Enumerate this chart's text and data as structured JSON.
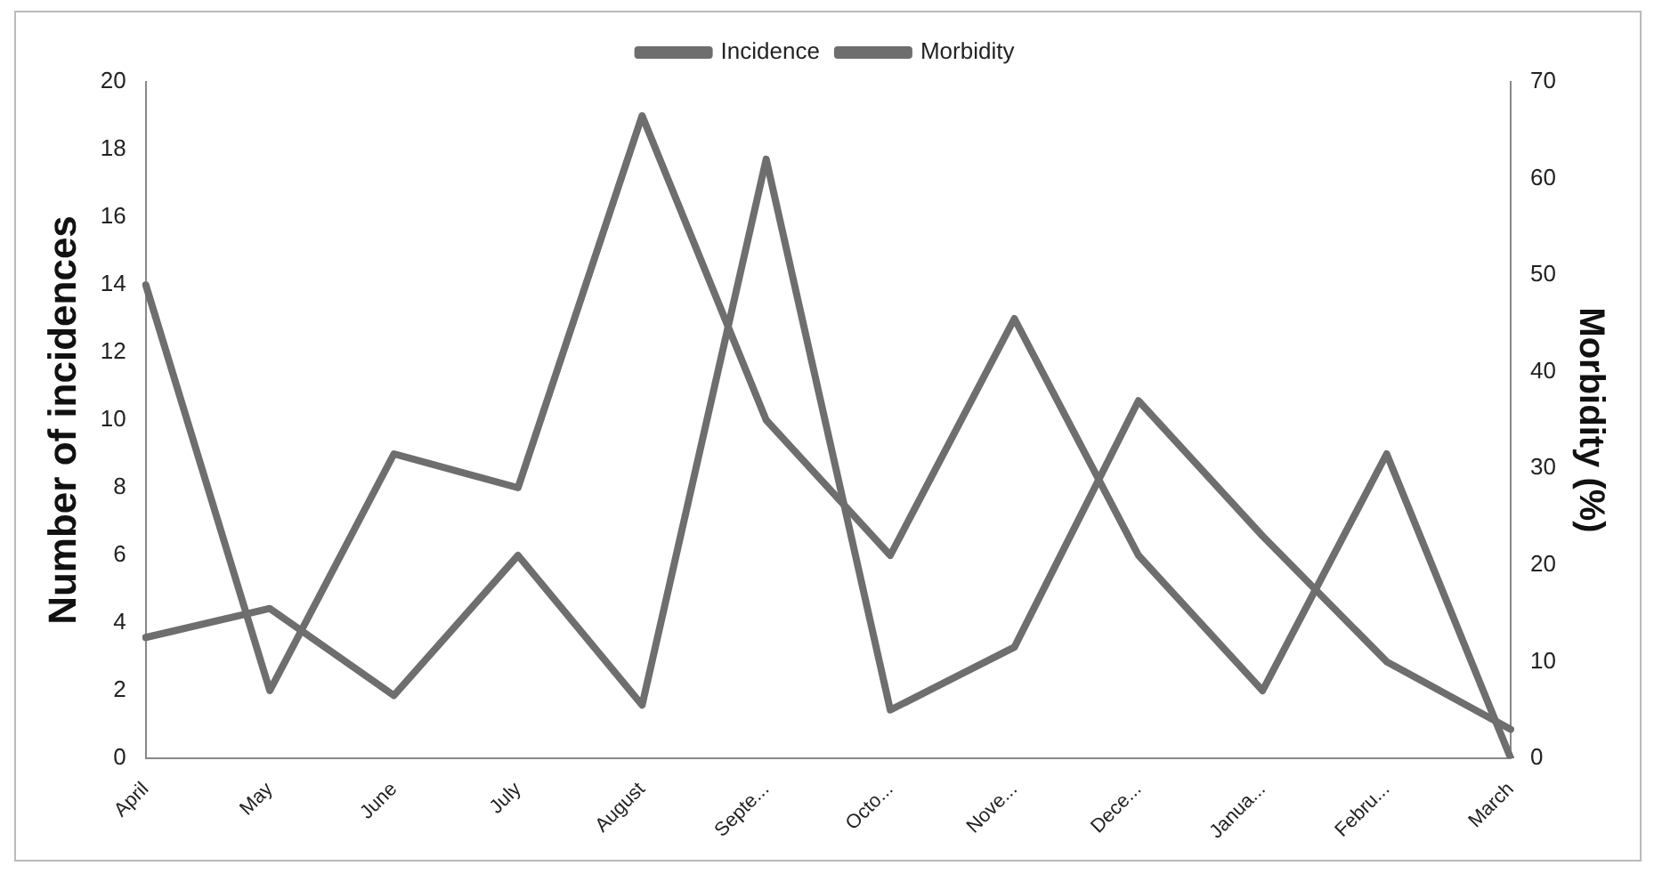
{
  "chart_data": {
    "type": "line",
    "categories": [
      "April",
      "May",
      "June",
      "July",
      "August",
      "Septe...",
      "Octo...",
      "Nove...",
      "Dece...",
      "Janua...",
      "Febru...",
      "March"
    ],
    "series": [
      {
        "name": "Incidence",
        "color": "#6e6e6e",
        "values": [
          14,
          2,
          9,
          8,
          19,
          10,
          6,
          13,
          6,
          2,
          9,
          0
        ]
      },
      {
        "name": "Morbidity",
        "color": "#6e6e6e",
        "axis": "y2",
        "values": [
          12.5,
          15.5,
          6.5,
          21,
          5.5,
          62,
          5,
          11.5,
          37,
          23,
          10,
          3
        ]
      }
    ],
    "ylabel": "Number of incidences",
    "y2label": "Morbidity (%)",
    "ylim": [
      0,
      20
    ],
    "yticks": [
      0,
      2,
      4,
      6,
      8,
      10,
      12,
      14,
      16,
      18,
      20
    ],
    "y2lim": [
      0,
      70
    ],
    "y2ticks": [
      0,
      10,
      20,
      30,
      40,
      50,
      60,
      70
    ],
    "legend": "top",
    "grid": false,
    "marker": "none",
    "line_style": "solid"
  }
}
